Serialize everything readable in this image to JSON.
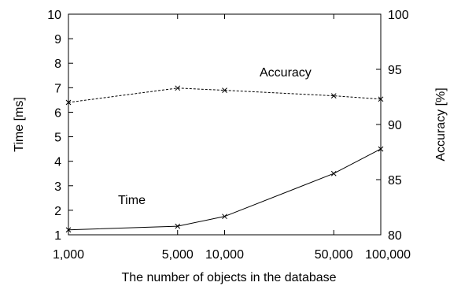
{
  "chart_data": {
    "type": "line",
    "xlabel": "The number of objects in the database",
    "ylabel_left": "Time [ms]",
    "ylabel_right": "Accuracy [%]",
    "x_scale": "log",
    "x_ticks": [
      1000,
      5000,
      10000,
      50000,
      100000
    ],
    "x_tick_labels": [
      "1,000",
      "5,000",
      "10,000",
      "50,000",
      "100,000"
    ],
    "ylim_left": [
      1,
      10
    ],
    "y_ticks_left": [
      1,
      2,
      3,
      4,
      5,
      6,
      7,
      8,
      9,
      10
    ],
    "ylim_right": [
      80,
      100
    ],
    "y_ticks_right": [
      80,
      85,
      90,
      95,
      100
    ],
    "grid": false,
    "series": [
      {
        "name": "Time",
        "axis": "left",
        "style": "solid",
        "x": [
          1000,
          5000,
          10000,
          50000,
          100000
        ],
        "values": [
          1.2,
          1.35,
          1.75,
          3.5,
          4.5
        ]
      },
      {
        "name": "Accuracy",
        "axis": "right",
        "style": "dashed",
        "x": [
          1000,
          5000,
          10000,
          50000,
          100000
        ],
        "values": [
          92.0,
          93.3,
          93.1,
          92.6,
          92.3
        ]
      }
    ],
    "colors": {
      "line": "#000000",
      "frame": "#000000"
    }
  }
}
